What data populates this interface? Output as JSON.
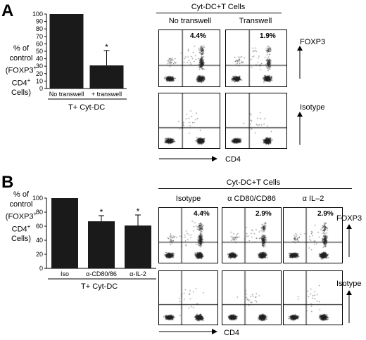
{
  "colors": {
    "bar": "#1a1a1a",
    "dots": "#222222",
    "axis": "#000000"
  },
  "panelA": {
    "letter": "A",
    "ylabel_lines": [
      "% of",
      "control",
      "(FOXP3",
      "CD4",
      "Cells)"
    ],
    "sup1": "+",
    "sup2": "+",
    "group_label": "T+ Cyt-DC",
    "header": "Cyt-DC+T Cells",
    "col_labels": [
      "No transwell",
      "Transwell"
    ],
    "percents": [
      "4.4%",
      "1.9%"
    ],
    "row_labels": [
      "FOXP3",
      "Isotype"
    ],
    "xaxis_label": "CD4"
  },
  "panelB": {
    "letter": "B",
    "ylabel_lines": [
      "% of",
      "control",
      "(FOXP3",
      "CD4",
      "Cells)"
    ],
    "sup1": "+",
    "sup2": "+",
    "group_label": "T+ Cyt-DC",
    "header": "Cyt-DC+T Cells",
    "col_labels": [
      "Isotype",
      "α CD80/CD86",
      "α IL–2"
    ],
    "percents": [
      "4.4%",
      "2.9%",
      "2.9%"
    ],
    "row_labels": [
      "FOXP3",
      "Isotype"
    ],
    "xaxis_label": "CD4"
  },
  "chart_data": [
    {
      "type": "bar",
      "title": "",
      "ylabel": "% of control (FOXP3+ CD4+ Cells)",
      "xlabel": "T+ Cyt-DC",
      "categories": [
        "No transwell",
        "+ transwell"
      ],
      "values": [
        100,
        31
      ],
      "errors": [
        0,
        20
      ],
      "significance": [
        "",
        "*"
      ],
      "ylim": [
        0,
        100
      ],
      "yticks": [
        0,
        10,
        20,
        30,
        40,
        50,
        60,
        70,
        80,
        90,
        100
      ]
    },
    {
      "type": "bar",
      "title": "",
      "ylabel": "% of control (FOXP3+ CD4+ Cells)",
      "xlabel": "T+ Cyt-DC",
      "categories": [
        "Iso",
        "α-CD80/86",
        "α-IL-2"
      ],
      "values": [
        100,
        67,
        61
      ],
      "errors": [
        0,
        8,
        15
      ],
      "significance": [
        "",
        "*",
        "*"
      ],
      "ylim": [
        0,
        100
      ],
      "yticks": [
        0,
        20,
        40,
        60,
        80,
        100
      ]
    }
  ]
}
